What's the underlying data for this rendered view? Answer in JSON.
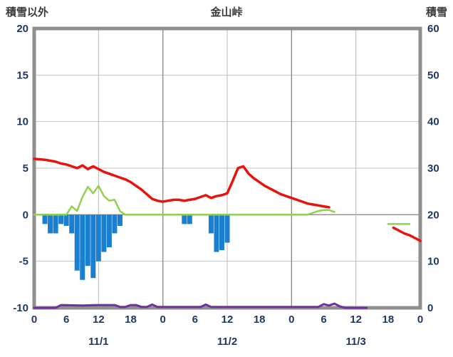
{
  "header": {
    "left": "積雪以外",
    "center": "金山峠",
    "right": "積雪"
  },
  "chart_data": {
    "type": "line+bar",
    "title": "金山峠",
    "left_axis": {
      "label": "積雪以外",
      "min": -10,
      "max": 20,
      "ticks": [
        20,
        15,
        10,
        5,
        0,
        -5,
        -10
      ],
      "gridlines": [
        15,
        10,
        5,
        -5
      ]
    },
    "right_axis": {
      "label": "積雪",
      "min": 0,
      "max": 60,
      "ticks": [
        60,
        50,
        40,
        30,
        20,
        10,
        0
      ]
    },
    "x_axis": {
      "min_hour": 0,
      "max_hour": 72,
      "ticks": [
        {
          "hour": 0,
          "label": "0"
        },
        {
          "hour": 6,
          "label": "6"
        },
        {
          "hour": 12,
          "label": "12"
        },
        {
          "hour": 18,
          "label": "18"
        },
        {
          "hour": 24,
          "label": "0"
        },
        {
          "hour": 30,
          "label": "6"
        },
        {
          "hour": 36,
          "label": "12"
        },
        {
          "hour": 42,
          "label": "18"
        },
        {
          "hour": 48,
          "label": "0"
        },
        {
          "hour": 54,
          "label": "6"
        },
        {
          "hour": 60,
          "label": "12"
        },
        {
          "hour": 66,
          "label": "18"
        },
        {
          "hour": 72,
          "label": "0"
        }
      ],
      "gridlines": [
        12,
        24,
        36,
        48,
        60
      ],
      "major_gridlines": [
        24,
        48
      ],
      "date_labels": [
        {
          "hour": 12,
          "label": "11/1"
        },
        {
          "hour": 36,
          "label": "11/2"
        },
        {
          "hour": 60,
          "label": "11/3"
        }
      ]
    },
    "series": [
      {
        "name": "precipitation",
        "type": "bar",
        "axis": "left",
        "color": "#1b7fd0",
        "points": [
          [
            2,
            -1
          ],
          [
            3,
            -2
          ],
          [
            4,
            -2
          ],
          [
            5,
            -1
          ],
          [
            6,
            -1.2
          ],
          [
            7,
            -2
          ],
          [
            8,
            -6
          ],
          [
            9,
            -7
          ],
          [
            10,
            -5.5
          ],
          [
            11,
            -6.8
          ],
          [
            12,
            -5
          ],
          [
            13,
            -4
          ],
          [
            14,
            -3.5
          ],
          [
            15,
            -2
          ],
          [
            16,
            -1.2
          ],
          [
            28,
            -1
          ],
          [
            29,
            -1
          ],
          [
            33,
            -2
          ],
          [
            34,
            -4
          ],
          [
            35,
            -3.8
          ],
          [
            36,
            -3
          ]
        ]
      },
      {
        "name": "road-temperature",
        "type": "line",
        "axis": "left",
        "color": "#92d050",
        "width": 2.5,
        "segments": [
          [
            [
              0,
              0
            ],
            [
              6,
              0
            ],
            [
              7,
              0.9
            ],
            [
              8,
              0.4
            ],
            [
              9,
              1.9
            ],
            [
              10,
              3
            ],
            [
              11,
              2.3
            ],
            [
              12,
              3.1
            ],
            [
              13,
              2
            ],
            [
              14,
              1.5
            ],
            [
              15,
              1.6
            ],
            [
              16,
              0.4
            ],
            [
              17,
              0
            ],
            [
              51,
              0
            ],
            [
              52,
              0.2
            ],
            [
              53,
              0.4
            ],
            [
              54,
              0.5
            ],
            [
              55,
              0.5
            ],
            [
              56,
              0.3
            ]
          ],
          [
            [
              66,
              -1
            ],
            [
              70,
              -1
            ]
          ]
        ]
      },
      {
        "name": "temperature",
        "type": "line",
        "axis": "left",
        "color": "#e8140c",
        "width": 3.5,
        "segments": [
          [
            [
              0,
              6
            ],
            [
              2,
              5.9
            ],
            [
              4,
              5.7
            ],
            [
              5,
              5.5
            ],
            [
              6,
              5.4
            ],
            [
              7,
              5.2
            ],
            [
              8,
              5.0
            ],
            [
              9,
              5.3
            ],
            [
              10,
              4.9
            ],
            [
              11,
              5.2
            ],
            [
              12,
              4.9
            ],
            [
              13,
              4.6
            ],
            [
              14,
              4.4
            ],
            [
              15,
              4.2
            ],
            [
              16,
              4.0
            ],
            [
              17,
              3.8
            ],
            [
              18,
              3.5
            ],
            [
              19,
              3.1
            ],
            [
              20,
              2.7
            ],
            [
              21,
              2.2
            ],
            [
              22,
              1.7
            ],
            [
              23,
              1.5
            ],
            [
              24,
              1.4
            ],
            [
              25,
              1.5
            ],
            [
              26,
              1.6
            ],
            [
              27,
              1.6
            ],
            [
              28,
              1.5
            ],
            [
              29,
              1.6
            ],
            [
              30,
              1.7
            ],
            [
              31,
              1.9
            ],
            [
              32,
              2.1
            ],
            [
              33,
              1.8
            ],
            [
              34,
              2.0
            ],
            [
              35,
              2.1
            ],
            [
              36,
              2.3
            ],
            [
              37,
              3.6
            ],
            [
              38,
              5.0
            ],
            [
              39,
              5.2
            ],
            [
              40,
              4.4
            ],
            [
              41,
              3.9
            ],
            [
              42,
              3.5
            ],
            [
              43,
              3.1
            ],
            [
              44,
              2.8
            ],
            [
              45,
              2.5
            ],
            [
              46,
              2.2
            ],
            [
              47,
              2.0
            ],
            [
              48,
              1.8
            ],
            [
              49,
              1.6
            ],
            [
              50,
              1.4
            ],
            [
              51,
              1.2
            ],
            [
              52,
              1.1
            ],
            [
              53,
              1.0
            ],
            [
              54,
              0.9
            ],
            [
              55,
              0.8
            ]
          ],
          [
            [
              67,
              -1.4
            ],
            [
              68,
              -1.7
            ],
            [
              69,
              -2.0
            ],
            [
              70,
              -2.2
            ],
            [
              71,
              -2.5
            ],
            [
              72,
              -2.8
            ]
          ]
        ]
      },
      {
        "name": "snow-depth",
        "type": "line",
        "axis": "right",
        "color": "#7030a0",
        "width": 3,
        "segments": [
          [
            [
              0,
              0
            ],
            [
              4,
              0
            ],
            [
              5,
              0.6
            ],
            [
              9,
              0.5
            ],
            [
              12,
              0.6
            ],
            [
              15,
              0.6
            ],
            [
              16,
              0.2
            ],
            [
              17,
              0.2
            ],
            [
              18,
              0.6
            ],
            [
              19,
              0.6
            ],
            [
              20,
              0.2
            ],
            [
              21,
              0.2
            ],
            [
              22,
              0.7
            ],
            [
              23,
              0.2
            ],
            [
              31,
              0.2
            ],
            [
              32,
              0.7
            ],
            [
              33,
              0.2
            ],
            [
              53,
              0.2
            ],
            [
              54,
              0.8
            ],
            [
              55,
              0.5
            ],
            [
              56,
              0.9
            ],
            [
              57,
              0.3
            ],
            [
              58,
              0
            ],
            [
              62,
              0
            ]
          ]
        ]
      }
    ]
  }
}
